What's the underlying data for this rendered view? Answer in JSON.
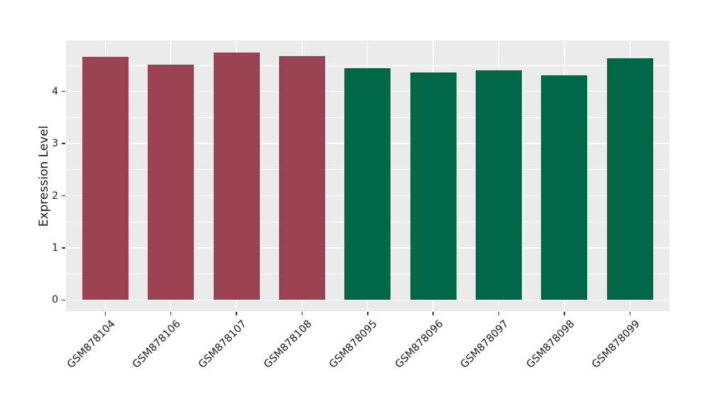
{
  "chart_data": {
    "type": "bar",
    "ylabel": "Expression Level",
    "categories": [
      "GSM878104",
      "GSM878106",
      "GSM878107",
      "GSM878108",
      "GSM878095",
      "GSM878096",
      "GSM878097",
      "GSM878098",
      "GSM878099"
    ],
    "values": [
      4.67,
      4.51,
      4.74,
      4.68,
      4.45,
      4.37,
      4.4,
      4.31,
      4.64
    ],
    "bar_colors": [
      "#9A4251",
      "#9A4251",
      "#9A4251",
      "#9A4251",
      "#026747",
      "#026747",
      "#026747",
      "#026747",
      "#026747"
    ],
    "yticks": [
      0,
      1,
      2,
      3,
      4
    ],
    "minor_yticks": [
      0.5,
      1.5,
      2.5,
      3.5,
      4.5
    ],
    "ylim": [
      -0.21,
      4.97
    ],
    "grid": "on",
    "legend": "none",
    "panel_background": "#EBEBEB",
    "grid_color": "#FFFFFF",
    "tick_color": "#333333",
    "text_color": "#1A1A1A"
  }
}
